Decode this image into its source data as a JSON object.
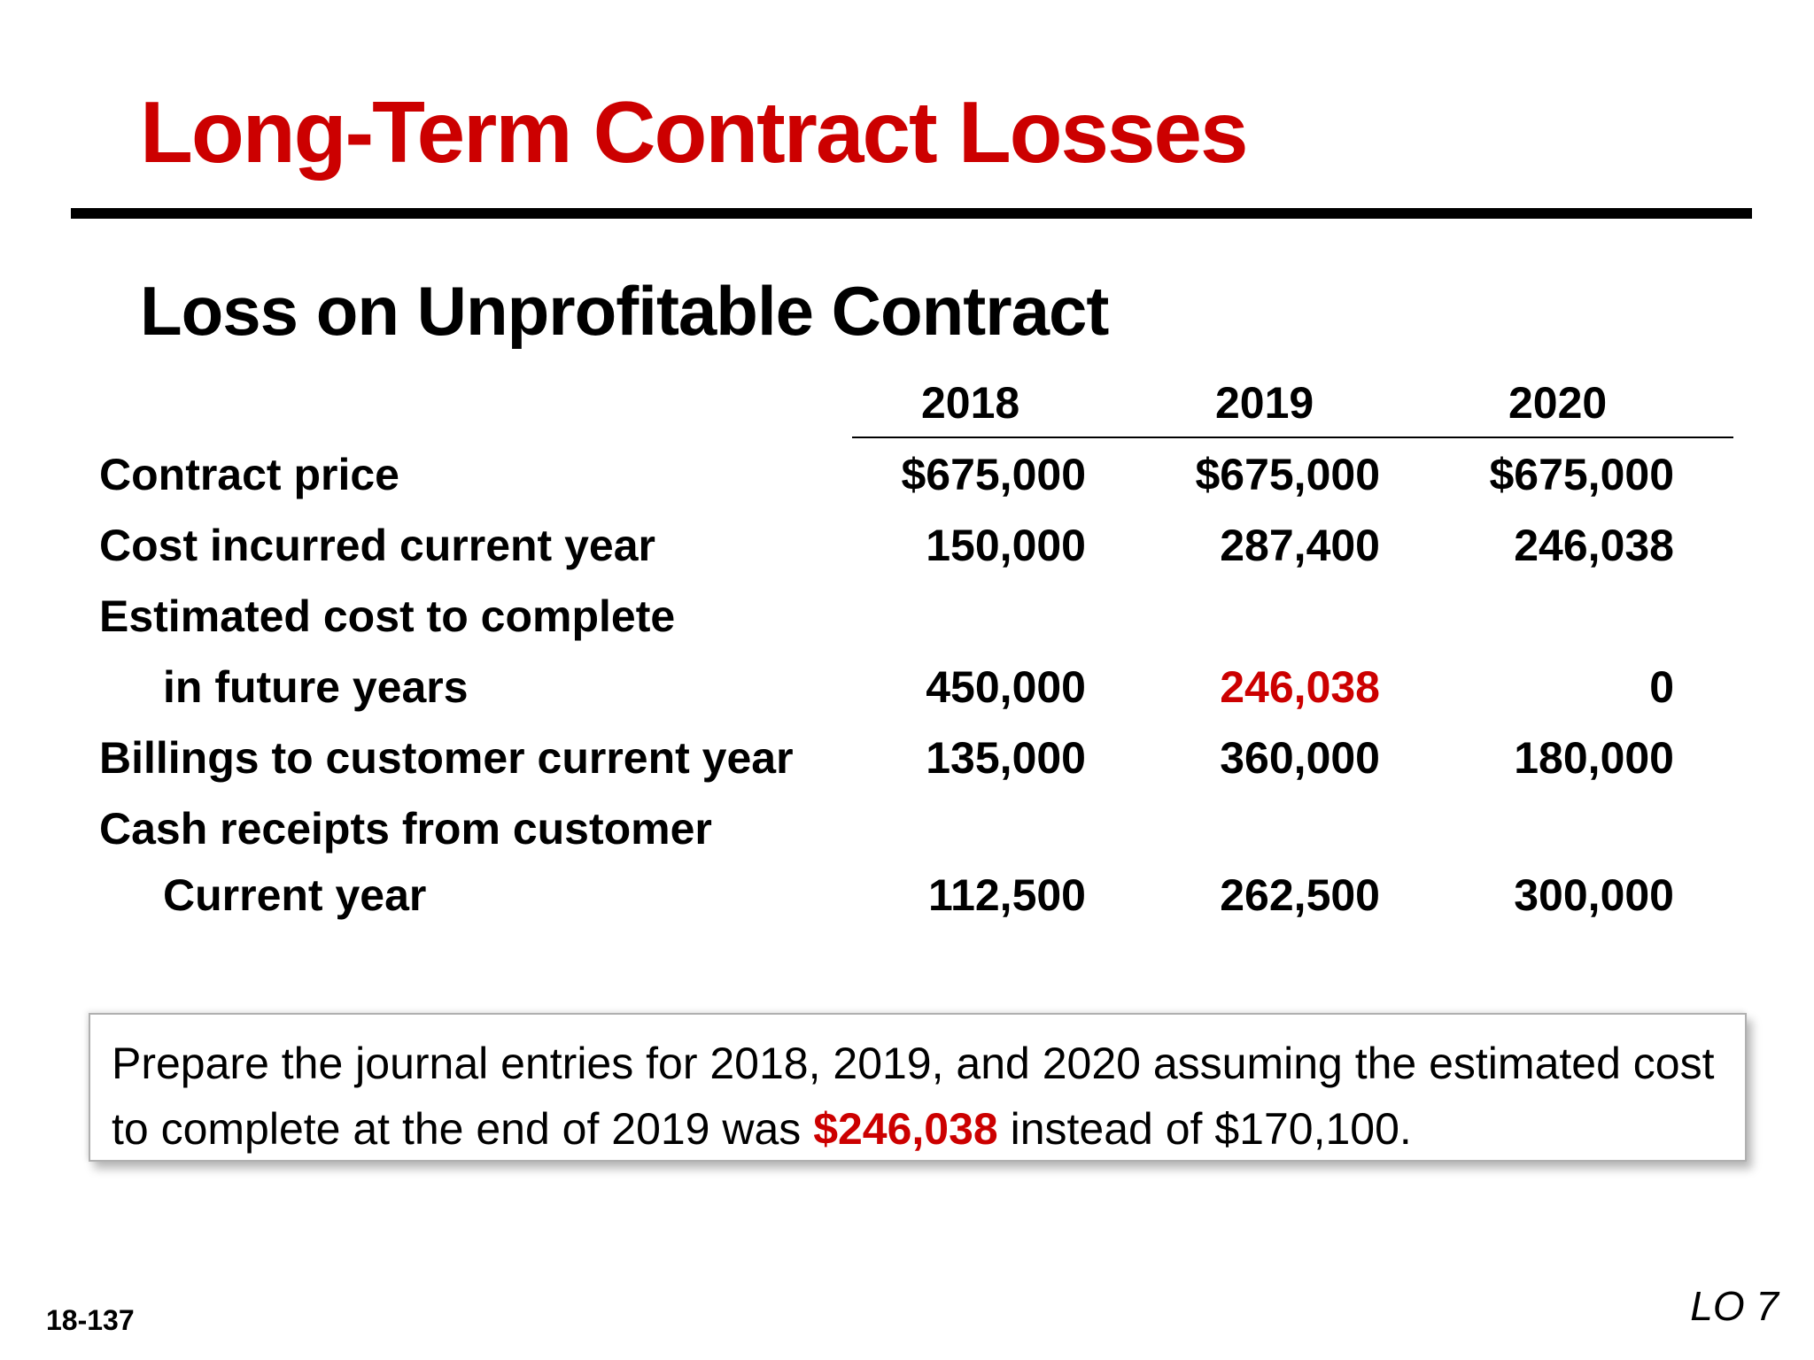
{
  "slide": {
    "title": "Long-Term Contract Losses",
    "subtitle": "Loss on Unprofitable Contract",
    "slide_number": "18-137",
    "learning_objective": "LO 7",
    "accent_color": "#cc0000"
  },
  "table": {
    "years": [
      "2018",
      "2019",
      "2020"
    ],
    "rows": [
      {
        "label": "Contract price",
        "values": [
          "$675,000",
          "$675,000",
          "$675,000"
        ]
      },
      {
        "label": "Cost incurred current year",
        "values": [
          "150,000",
          "287,400",
          "246,038"
        ]
      },
      {
        "label": "Estimated cost to complete",
        "values": []
      },
      {
        "label": "in future years",
        "values": [
          "450,000",
          "246,038",
          "0"
        ]
      },
      {
        "label": "Billings to customer current year",
        "values": [
          "135,000",
          "360,000",
          "180,000"
        ]
      },
      {
        "label": "Cash receipts from customer",
        "values": []
      },
      {
        "label": "Current year",
        "values": [
          "112,500",
          "262,500",
          "300,000"
        ]
      }
    ]
  },
  "note": {
    "part1": "Prepare the journal entries for 2018, 2019, and 2020 assuming the estimated cost to complete at the end of 2019 was ",
    "highlight": "$246,038",
    "part2": " instead of $170,100."
  }
}
